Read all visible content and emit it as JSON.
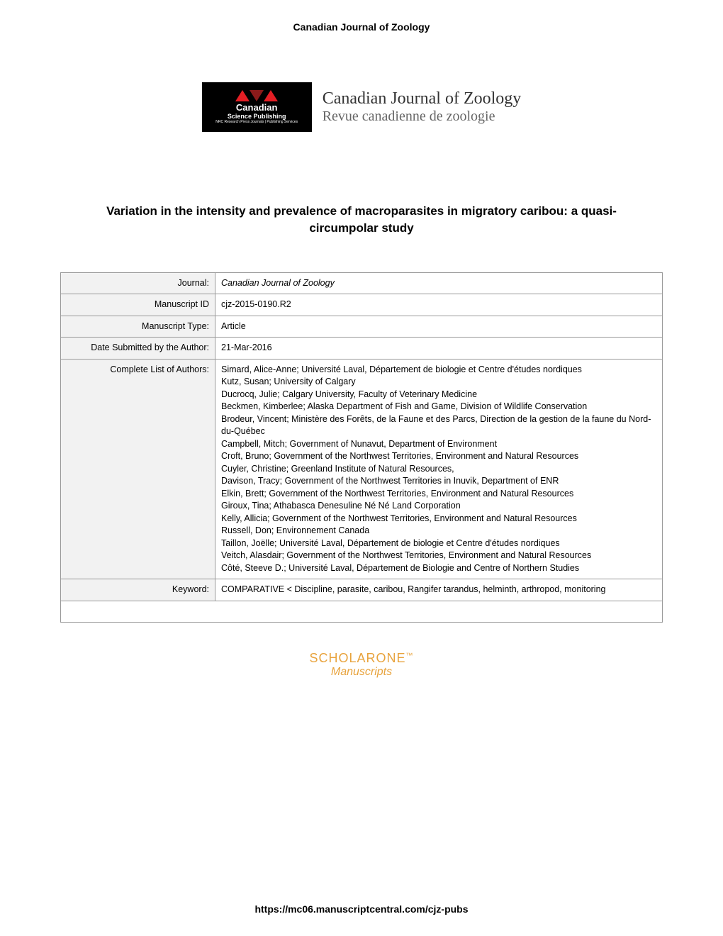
{
  "header": {
    "journal_name": "Canadian Journal of Zoology"
  },
  "logo": {
    "publisher_name": "Canadian",
    "publisher_sub": "Science Publishing",
    "publisher_tagline": "NRC Research Press Journals | Publishing Services",
    "journal_title_en": "Canadian Journal of Zoology",
    "journal_title_fr": "Revue canadienne de zoologie"
  },
  "article": {
    "title": "Variation in the intensity and prevalence of macroparasites in migratory caribou: a quasi-circumpolar study"
  },
  "metadata": {
    "rows": [
      {
        "label": "Journal:",
        "value": "Canadian Journal of Zoology",
        "italic": true
      },
      {
        "label": "Manuscript ID",
        "value": "cjz-2015-0190.R2"
      },
      {
        "label": "Manuscript Type:",
        "value": "Article"
      },
      {
        "label": "Date Submitted by the Author:",
        "value": "21-Mar-2016"
      }
    ],
    "authors_label": "Complete List of Authors:",
    "authors": [
      "Simard, Alice-Anne; Université Laval, Département de biologie et Centre d'études nordiques",
      "Kutz, Susan; University of Calgary",
      "Ducrocq, Julie; Calgary University, Faculty of Veterinary Medicine",
      "Beckmen, Kimberlee; Alaska Department of Fish and Game, Division of Wildlife Conservation",
      "Brodeur, Vincent; Ministère des Forêts, de la Faune et des Parcs, Direction de la gestion de la faune du Nord-du-Québec",
      "Campbell, Mitch; Government of Nunavut, Department of Environment",
      "Croft, Bruno; Government of the Northwest Territories, Environment and Natural Resources",
      "Cuyler, Christine; Greenland Institute of Natural Resources,",
      "Davison, Tracy; Government of the Northwest Territories in Inuvik, Department of ENR",
      "Elkin, Brett; Government of the Northwest Territories, Environment and Natural Resources",
      "Giroux, Tina; Athabasca Denesuline Né Né Land Corporation",
      "Kelly, Allicia; Government of the Northwest Territories, Environment and Natural Resources",
      "Russell, Don; Environnement Canada",
      "Taillon, Joëlle; Université Laval, Département de biologie et Centre d'études nordiques",
      "Veitch, Alasdair; Government of the Northwest Territories, Environment and Natural Resources",
      "Côté, Steeve D.; Université Laval, Département de Biologie and Centre of Northern Studies"
    ],
    "keyword_label": "Keyword:",
    "keyword_value": "COMPARATIVE < Discipline, parasite, caribou, Rangifer tarandus, helminth, arthropod, monitoring"
  },
  "scholarone": {
    "brand": "SCHOLARONE",
    "tm": "™",
    "sub": "Manuscripts"
  },
  "footer": {
    "url": "https://mc06.manuscriptcentral.com/cjz-pubs"
  },
  "colors": {
    "logo_bg": "#000000",
    "logo_red": "#e31e24",
    "table_border": "#999999",
    "table_label_bg": "#f2f2f2",
    "scholar_color": "#e8a33d"
  }
}
